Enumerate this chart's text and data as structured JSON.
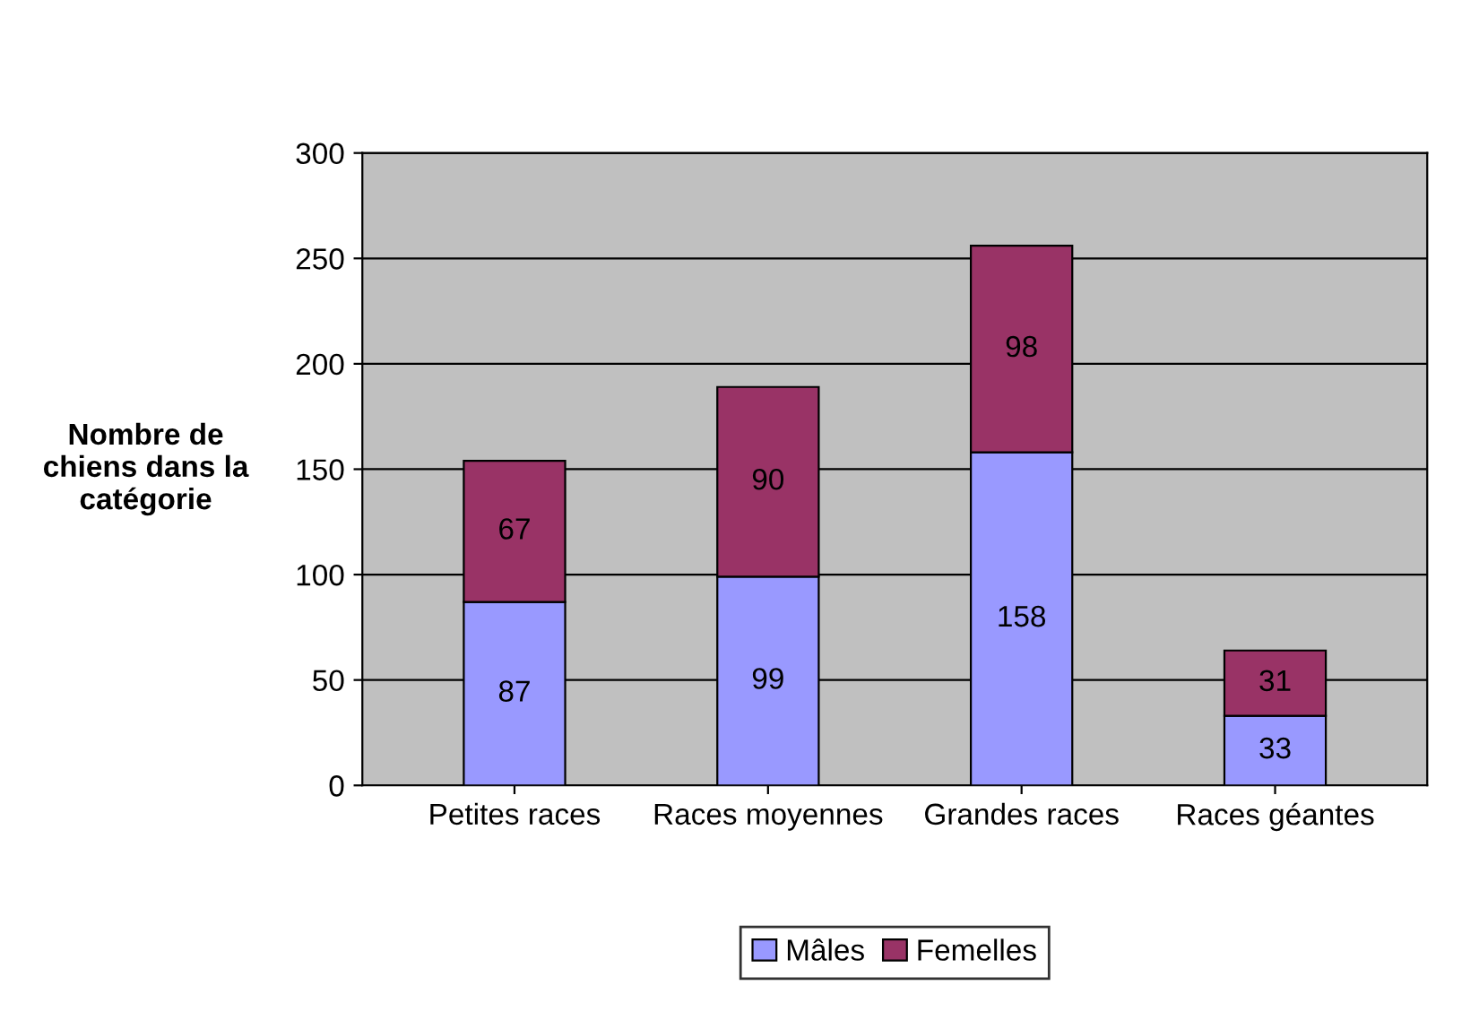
{
  "chart_data": {
    "type": "bar",
    "stacked": true,
    "ylabel": "Nombre de\nchiens dans la\ncatégorie",
    "categories": [
      "Petites races",
      "Races moyennes",
      "Grandes races",
      "Races géantes"
    ],
    "series": [
      {
        "name": "Mâles",
        "color": "#9999ff",
        "values": [
          87,
          99,
          158,
          33
        ]
      },
      {
        "name": "Femelles",
        "color": "#993366",
        "values": [
          67,
          90,
          98,
          31
        ]
      }
    ],
    "ylim": [
      0,
      300
    ],
    "yticks": [
      0,
      50,
      100,
      150,
      200,
      250,
      300
    ],
    "grid": "y",
    "legend": "bottom",
    "data_labels": true
  }
}
